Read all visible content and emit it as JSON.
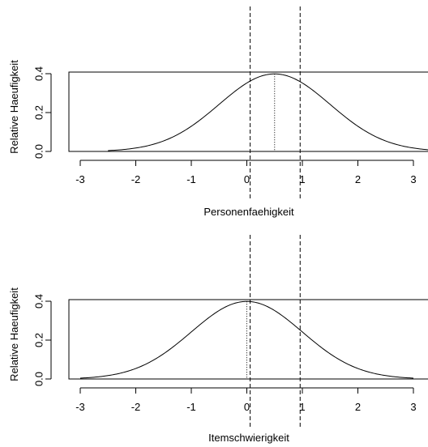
{
  "chart_data": [
    {
      "type": "line",
      "xlabel": "Personenfaehigkeit",
      "ylabel": "Relative Haeufigkeit",
      "xlim": [
        -3.1,
        3.1
      ],
      "ylim": [
        0,
        0.4
      ],
      "x_ticks": [
        -3,
        -2,
        -1,
        0,
        1,
        2,
        3
      ],
      "y_ticks": [
        0.0,
        0.2,
        0.4
      ],
      "x_tick_labels": [
        "-3",
        "-2",
        "-1",
        "0",
        "1",
        "2",
        "3"
      ],
      "y_tick_labels": [
        "0.0",
        "0.2",
        "0.4"
      ],
      "curve": {
        "mean": 0.5,
        "sd": 1,
        "x_start": -2.5,
        "x_end": 3.5
      },
      "dotted_line_x": 0.5,
      "dashed_lines_x": [
        0.06,
        0.96
      ],
      "grid": false
    },
    {
      "type": "line",
      "xlabel": "Itemschwierigkeit",
      "ylabel": "Relative Haeufigkeit",
      "xlim": [
        -3.1,
        3.1
      ],
      "ylim": [
        0,
        0.4
      ],
      "x_ticks": [
        -3,
        -2,
        -1,
        0,
        1,
        2,
        3
      ],
      "y_ticks": [
        0.0,
        0.2,
        0.4
      ],
      "x_tick_labels": [
        "-3",
        "-2",
        "-1",
        "0",
        "1",
        "2",
        "3"
      ],
      "y_tick_labels": [
        "0.0",
        "0.2",
        "0.4"
      ],
      "curve": {
        "mean": 0.0,
        "sd": 1,
        "x_start": -3.0,
        "x_end": 3.0
      },
      "dotted_line_x": 0.0,
      "dashed_lines_x": [
        0.06,
        0.96
      ],
      "grid": false
    }
  ]
}
